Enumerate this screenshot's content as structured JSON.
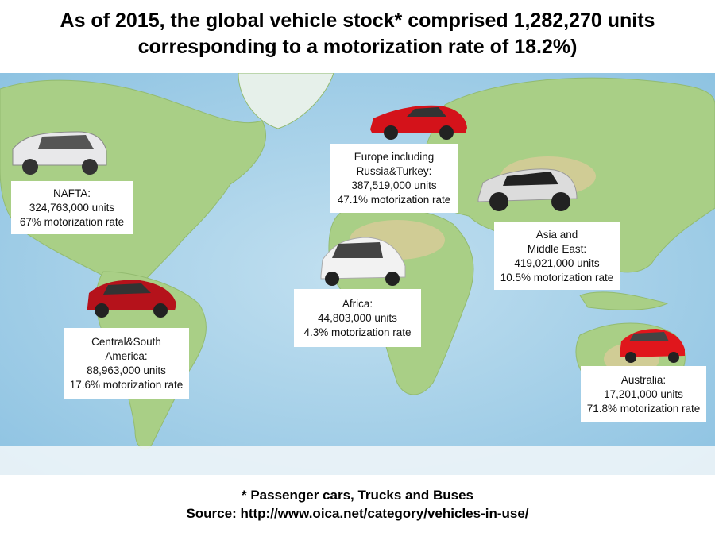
{
  "title": {
    "line1": "As of 2015, the global vehicle stock* comprised 1,282,270 units",
    "line2": "corresponding to a motorization rate of 18.2%)"
  },
  "regions": [
    {
      "name": "NAFTA:",
      "name2": "",
      "units": "324,763,000 units",
      "rate": "67% motorization rate",
      "car_color": "#e8e8ea"
    },
    {
      "name": "Europe including",
      "name2": "Russia&Turkey:",
      "units": "387,519,000 units",
      "rate": "47.1% motorization rate",
      "car_color": "#d4121a"
    },
    {
      "name": "Asia and",
      "name2": "Middle East:",
      "units": "419,021,000 units",
      "rate": "10.5% motorization rate",
      "car_color": "#dcdcdc"
    },
    {
      "name": "Africa:",
      "name2": "",
      "units": "44,803,000 units",
      "rate": "4.3% motorization rate",
      "car_color": "#f2f2f2"
    },
    {
      "name": "Central&South",
      "name2": "America:",
      "units": "88,963,000 units",
      "rate": "17.6% motorization rate",
      "car_color": "#b5121b"
    },
    {
      "name": "Australia:",
      "name2": "",
      "units": "17,201,000 units",
      "rate": "71.8% motorization rate",
      "car_color": "#e0161c"
    }
  ],
  "footer": {
    "note": "* Passenger cars, Trucks and Buses",
    "source": "Source: http://www.oica.net/category/vehicles-in-use/"
  },
  "colors": {
    "ocean": "#a9d3ea",
    "land": "#a9cf86",
    "desert": "#d9cb98",
    "ice": "#eef5f8"
  }
}
